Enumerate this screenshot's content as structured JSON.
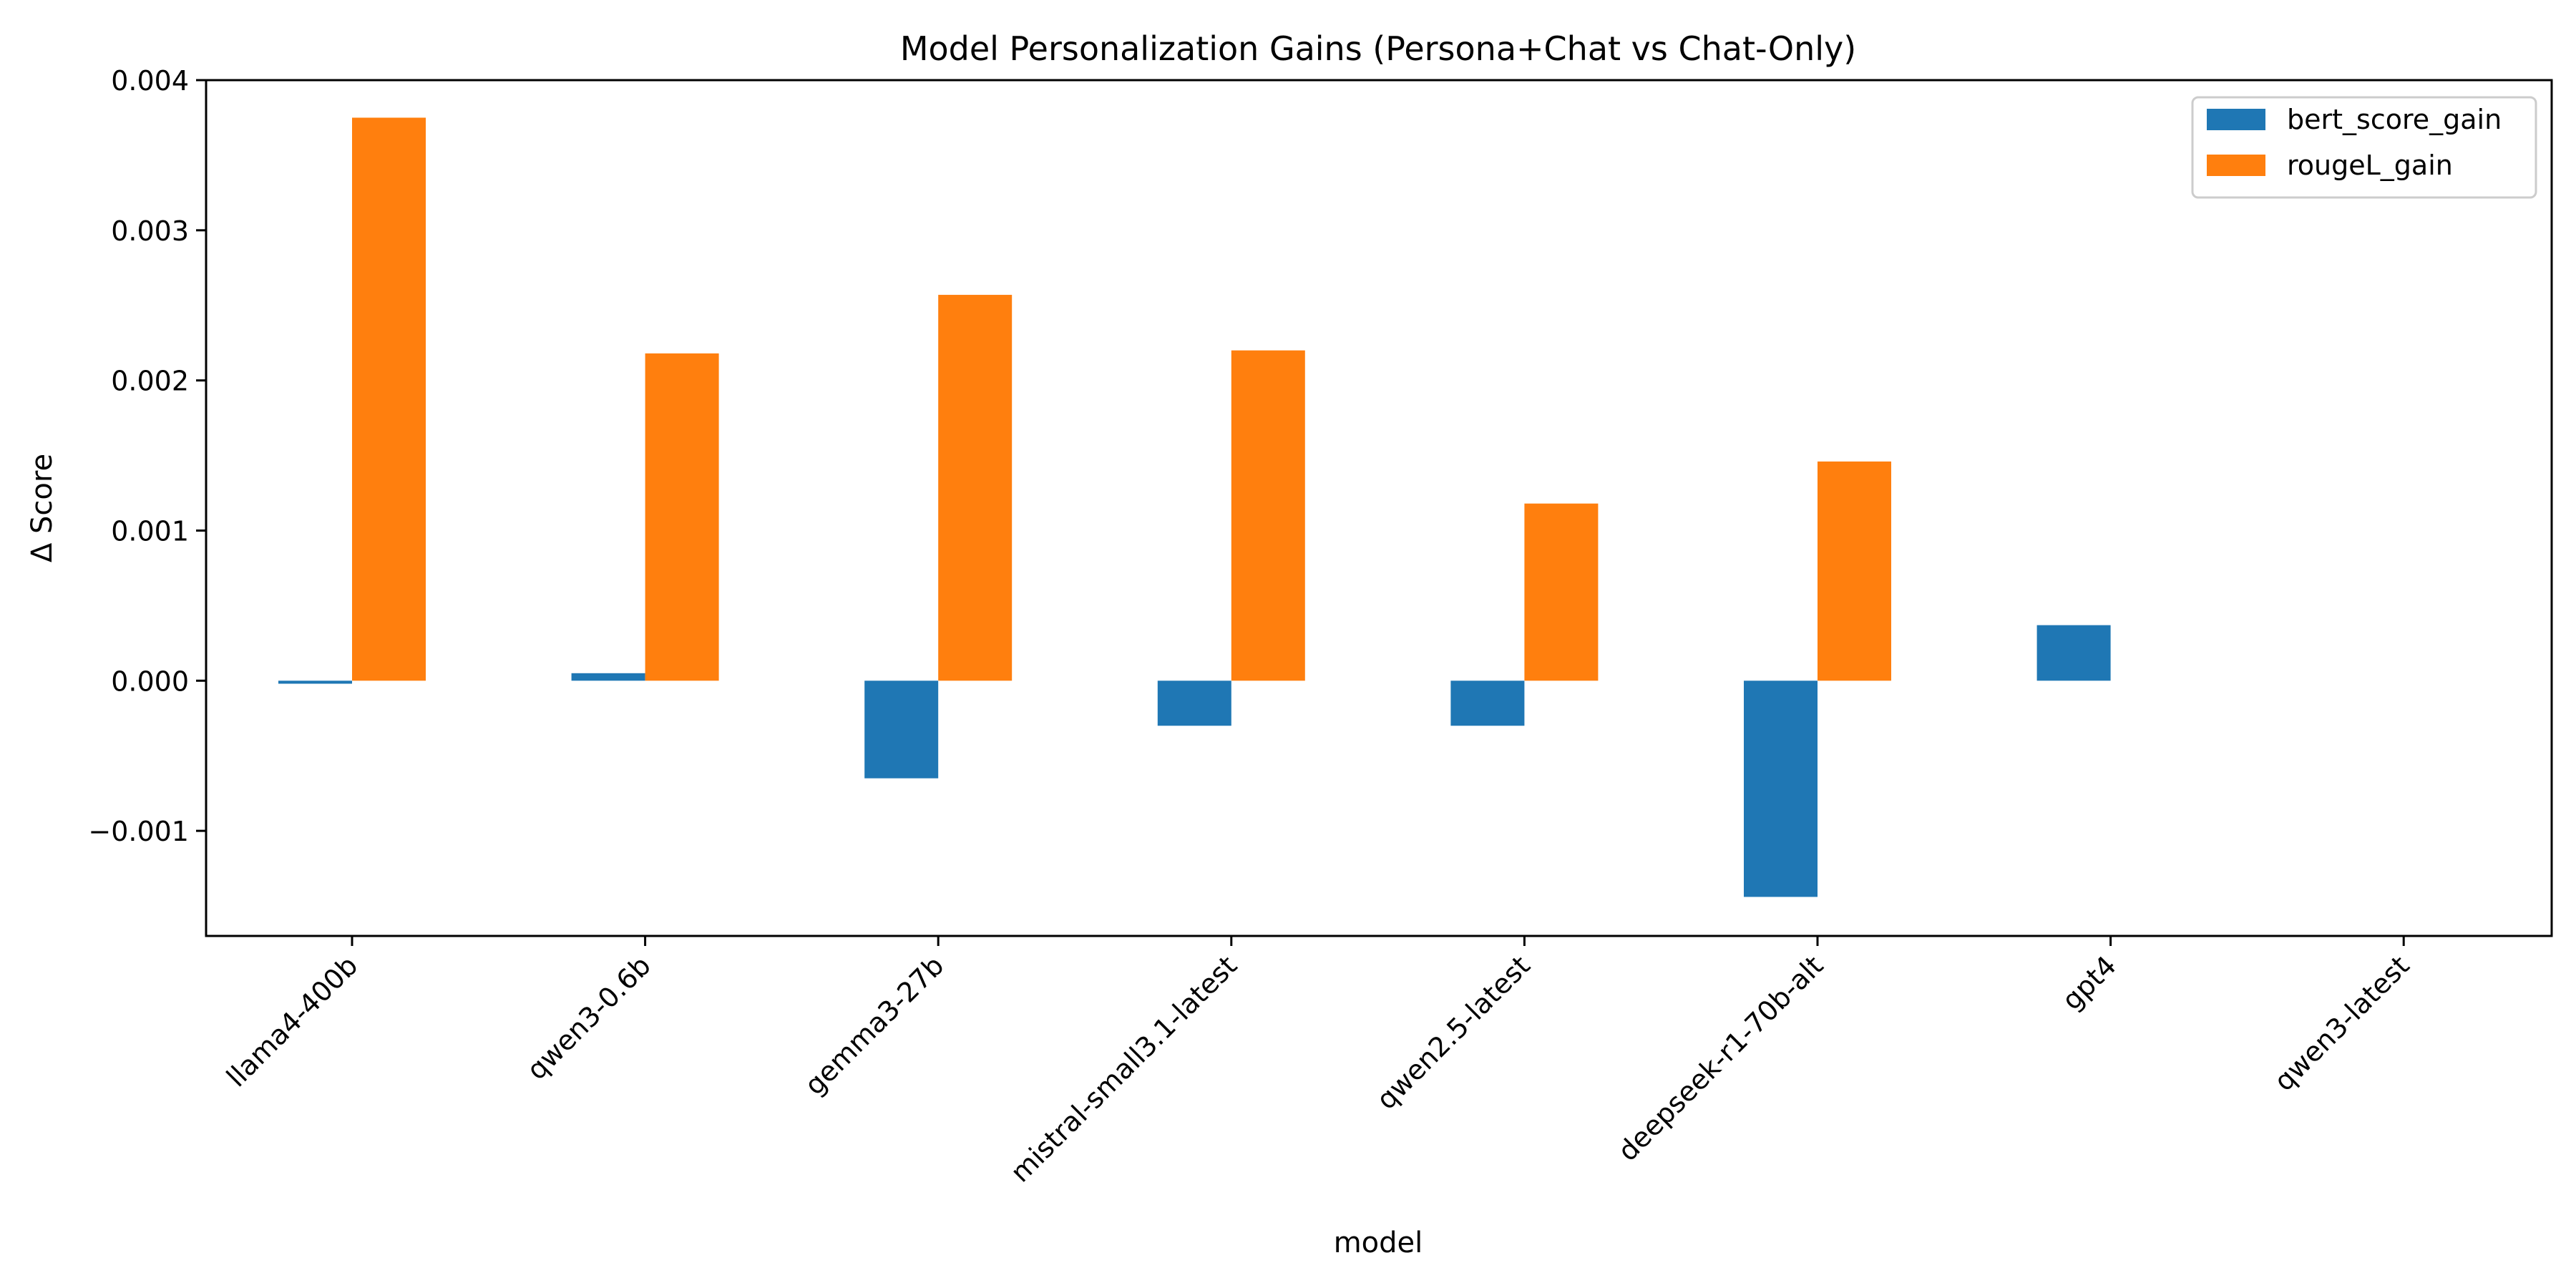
{
  "chart_data": {
    "type": "bar",
    "title": "Model Personalization Gains (Persona+Chat vs Chat-Only)",
    "xlabel": "model",
    "ylabel": "Δ Score",
    "categories": [
      "llama4-400b",
      "qwen3-0.6b",
      "gemma3-27b",
      "mistral-small3.1-latest",
      "qwen2.5-latest",
      "deepseek-r1-70b-alt",
      "gpt4",
      "qwen3-latest"
    ],
    "series": [
      {
        "name": "bert_score_gain",
        "color": "#1f77b4",
        "values": [
          -2e-05,
          5e-05,
          -0.00065,
          -0.0003,
          -0.0003,
          -0.00144,
          0.00037,
          null
        ]
      },
      {
        "name": "rougeL_gain",
        "color": "#ff7f0e",
        "values": [
          0.00375,
          0.00218,
          0.00257,
          0.0022,
          0.00118,
          0.00146,
          null,
          null
        ]
      }
    ],
    "ylim": [
      -0.0017,
      0.004
    ],
    "yticks": [
      -0.001,
      0.0,
      0.001,
      0.002,
      0.003,
      0.004
    ],
    "ytick_labels": [
      "−0.001",
      "0.000",
      "0.001",
      "0.002",
      "0.003",
      "0.004"
    ],
    "grid": false,
    "legend_position": "top-right"
  }
}
